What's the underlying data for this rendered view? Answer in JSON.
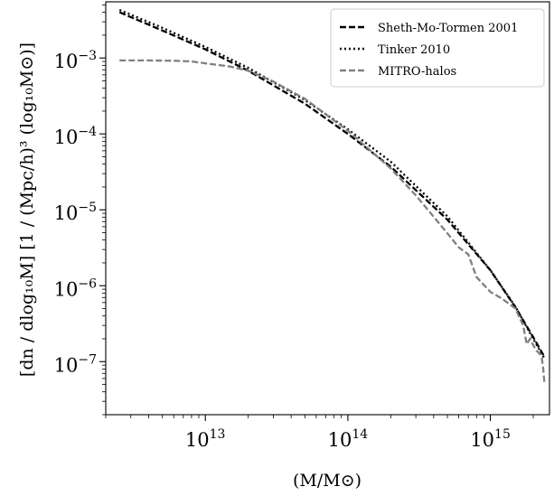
{
  "chart_data": {
    "type": "line",
    "title": "",
    "xlabel": "(M/M⊙)",
    "ylabel": "[dn / dlog₁₀M] [1 / (Mpc/h)³ (log₁₀M⊙)]",
    "xscale": "log",
    "yscale": "log",
    "xlim": [
      2000000000000.0,
      2600000000000000.0
    ],
    "ylim": [
      2e-08,
      0.0055
    ],
    "grid": false,
    "legend_position": "top-right",
    "x_ticks": [
      {
        "base": "10",
        "exp": "13",
        "value": 10000000000000.0
      },
      {
        "base": "10",
        "exp": "14",
        "value": 100000000000000.0
      },
      {
        "base": "10",
        "exp": "15",
        "value": 1000000000000000.0
      }
    ],
    "y_ticks": [
      {
        "base": "10",
        "exp": "−3",
        "value": 0.001
      },
      {
        "base": "10",
        "exp": "−4",
        "value": 0.0001
      },
      {
        "base": "10",
        "exp": "−5",
        "value": 1e-05
      },
      {
        "base": "10",
        "exp": "−6",
        "value": 1e-06
      },
      {
        "base": "10",
        "exp": "−7",
        "value": 1e-07
      }
    ],
    "series": [
      {
        "name": "Sheth-Mo-Tormen 2001",
        "color": "#000000",
        "style": "dashed",
        "x": [
          2500000000000.0,
          5000000000000.0,
          10000000000000.0,
          20000000000000.0,
          50000000000000.0,
          100000000000000.0,
          200000000000000.0,
          500000000000000.0,
          1000000000000000.0,
          1500000000000000.0,
          2000000000000000.0,
          2400000000000000.0
        ],
        "y": [
          0.004,
          0.0023,
          0.0013,
          0.00068,
          0.00025,
          0.0001,
          3.7e-05,
          7.4e-06,
          1.6e-06,
          5.2e-07,
          2.1e-07,
          1.15e-07
        ]
      },
      {
        "name": "Tinker 2010",
        "color": "#000000",
        "style": "dotted",
        "x": [
          2500000000000.0,
          5000000000000.0,
          10000000000000.0,
          20000000000000.0,
          50000000000000.0,
          100000000000000.0,
          200000000000000.0,
          500000000000000.0,
          1000000000000000.0,
          1500000000000000.0,
          2000000000000000.0,
          2400000000000000.0
        ],
        "y": [
          0.0043,
          0.0025,
          0.0014,
          0.00074,
          0.00028,
          0.000115,
          4.3e-05,
          8.2e-06,
          1.6e-06,
          5.3e-07,
          2e-07,
          1.1e-07
        ]
      },
      {
        "name": "MITRO-halos",
        "color": "#808080",
        "style": "dashed",
        "x": [
          2500000000000.0,
          4000000000000.0,
          6000000000000.0,
          8000000000000.0,
          10000000000000.0,
          15000000000000.0,
          20000000000000.0,
          30000000000000.0,
          50000000000000.0,
          100000000000000.0,
          200000000000000.0,
          300000000000000.0,
          500000000000000.0,
          600000000000000.0,
          700000000000000.0,
          800000000000000.0,
          1000000000000000.0,
          1200000000000000.0,
          1500000000000000.0,
          1700000000000000.0,
          1800000000000000.0,
          1900000000000000.0,
          2000000000000000.0,
          2100000000000000.0,
          2200000000000000.0,
          2300000000000000.0,
          2350000000000000.0,
          2400000000000000.0
        ],
        "y": [
          0.00093,
          0.00093,
          0.00092,
          0.0009,
          0.00085,
          0.00077,
          0.00068,
          0.00049,
          0.00029,
          0.00011,
          3.5e-05,
          1.55e-05,
          4.9e-06,
          3.2e-06,
          2.6e-06,
          1.3e-06,
          8.3e-07,
          6.8e-07,
          5e-07,
          3e-07,
          1.7e-07,
          2e-07,
          1.65e-07,
          1.4e-07,
          1.3e-07,
          1.1e-07,
          8e-08,
          5e-08
        ]
      }
    ]
  }
}
